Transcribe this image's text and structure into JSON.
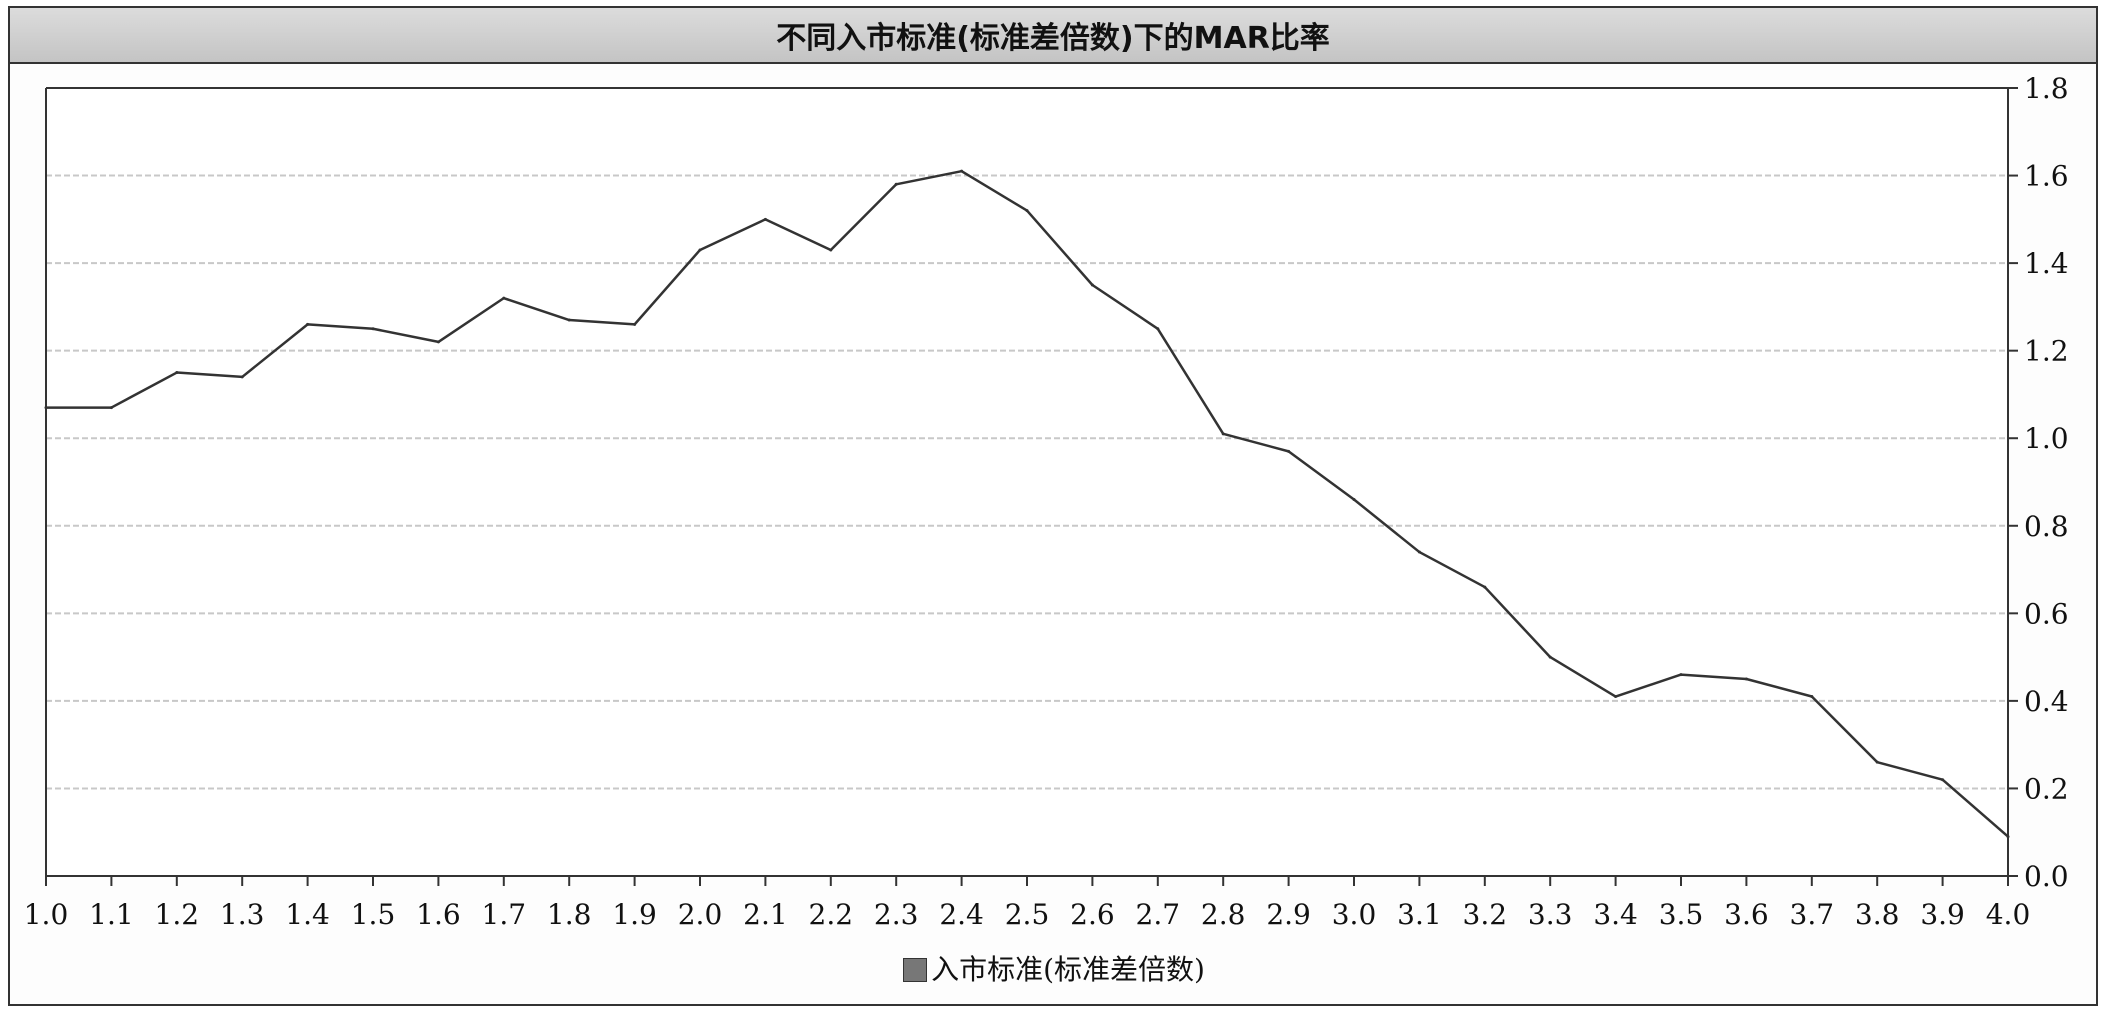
{
  "chart_data": {
    "type": "line",
    "title": "不同入市标准(标准差倍数)下的MAR比率",
    "x": [
      1.0,
      1.1,
      1.2,
      1.3,
      1.4,
      1.5,
      1.6,
      1.7,
      1.8,
      1.9,
      2.0,
      2.1,
      2.2,
      2.3,
      2.4,
      2.5,
      2.6,
      2.7,
      2.8,
      2.9,
      3.0,
      3.1,
      3.2,
      3.3,
      3.4,
      3.5,
      3.6,
      3.7,
      3.8,
      3.9,
      4.0
    ],
    "x_tick_labels": [
      "1.0",
      "1.1",
      "1.2",
      "1.3",
      "1.4",
      "1.5",
      "1.6",
      "1.7",
      "1.8",
      "1.9",
      "2.0",
      "2.1",
      "2.2",
      "2.3",
      "2.4",
      "2.5",
      "2.6",
      "2.7",
      "2.8",
      "2.9",
      "3.0",
      "3.1",
      "3.2",
      "3.3",
      "3.4",
      "3.5",
      "3.6",
      "3.7",
      "3.8",
      "3.9",
      "4.0"
    ],
    "series": [
      {
        "name": "入市标准(标准差倍数)",
        "values": [
          1.07,
          1.07,
          1.15,
          1.14,
          1.26,
          1.25,
          1.22,
          1.32,
          1.27,
          1.26,
          1.43,
          1.5,
          1.43,
          1.58,
          1.61,
          1.52,
          1.35,
          1.25,
          1.01,
          0.97,
          0.86,
          0.74,
          0.66,
          0.5,
          0.41,
          0.46,
          0.45,
          0.41,
          0.26,
          0.22,
          0.09
        ]
      }
    ],
    "xlim": [
      1.0,
      4.0
    ],
    "ylim": [
      0.0,
      1.8
    ],
    "y_ticks": [
      0.0,
      0.2,
      0.4,
      0.6,
      0.8,
      1.0,
      1.2,
      1.4,
      1.6,
      1.8
    ],
    "y_tick_labels": [
      "0.0",
      "0.2",
      "0.4",
      "0.6",
      "0.8",
      "1.0",
      "1.2",
      "1.4",
      "1.6",
      "1.8"
    ],
    "y_axis_side": "right",
    "grid": true,
    "legend_position": "bottom-center",
    "line_color": "#333333",
    "grid_color": "#c8c8c8"
  }
}
